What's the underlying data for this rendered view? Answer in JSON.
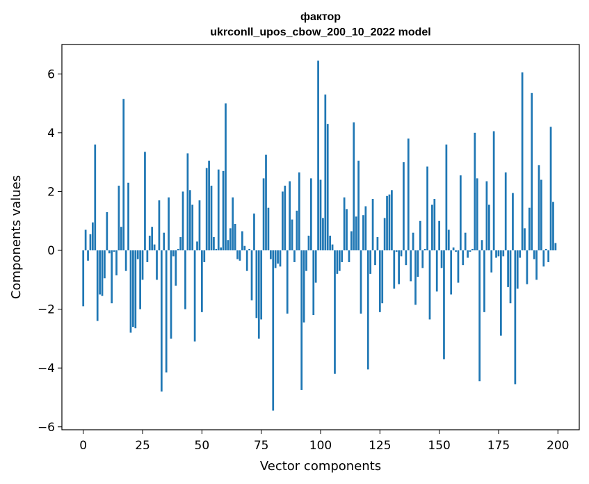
{
  "chart_data": {
    "type": "bar",
    "title": "фактор",
    "subtitle": "ukrconll_upos_cbow_200_10_2022 model",
    "xlabel": "Vector components",
    "ylabel": "Components values",
    "xlim": [
      -9,
      209
    ],
    "ylim": [
      -6.1,
      7.0
    ],
    "xticks": [
      0,
      25,
      50,
      75,
      100,
      125,
      150,
      175,
      200
    ],
    "yticks": [
      -6,
      -4,
      -2,
      0,
      2,
      4,
      6
    ],
    "xtick_labels": [
      "0",
      "25",
      "50",
      "75",
      "100",
      "125",
      "150",
      "175",
      "200"
    ],
    "ytick_labels": [
      "−6",
      "−4",
      "−2",
      "0",
      "2",
      "4",
      "6"
    ],
    "grid": false,
    "bar_color": "#1f77b4",
    "x": [
      0,
      1,
      2,
      3,
      4,
      5,
      6,
      7,
      8,
      9,
      10,
      11,
      12,
      13,
      14,
      15,
      16,
      17,
      18,
      19,
      20,
      21,
      22,
      23,
      24,
      25,
      26,
      27,
      28,
      29,
      30,
      31,
      32,
      33,
      34,
      35,
      36,
      37,
      38,
      39,
      40,
      41,
      42,
      43,
      44,
      45,
      46,
      47,
      48,
      49,
      50,
      51,
      52,
      53,
      54,
      55,
      56,
      57,
      58,
      59,
      60,
      61,
      62,
      63,
      64,
      65,
      66,
      67,
      68,
      69,
      70,
      71,
      72,
      73,
      74,
      75,
      76,
      77,
      78,
      79,
      80,
      81,
      82,
      83,
      84,
      85,
      86,
      87,
      88,
      89,
      90,
      91,
      92,
      93,
      94,
      95,
      96,
      97,
      98,
      99,
      100,
      101,
      102,
      103,
      104,
      105,
      106,
      107,
      108,
      109,
      110,
      111,
      112,
      113,
      114,
      115,
      116,
      117,
      118,
      119,
      120,
      121,
      122,
      123,
      124,
      125,
      126,
      127,
      128,
      129,
      130,
      131,
      132,
      133,
      134,
      135,
      136,
      137,
      138,
      139,
      140,
      141,
      142,
      143,
      144,
      145,
      146,
      147,
      148,
      149,
      150,
      151,
      152,
      153,
      154,
      155,
      156,
      157,
      158,
      159,
      160,
      161,
      162,
      163,
      164,
      165,
      166,
      167,
      168,
      169,
      170,
      171,
      172,
      173,
      174,
      175,
      176,
      177,
      178,
      179,
      180,
      181,
      182,
      183,
      184,
      185,
      186,
      187,
      188,
      189,
      190,
      191,
      192,
      193,
      194,
      195,
      196,
      197,
      198,
      199
    ],
    "values": [
      -1.9,
      0.7,
      -0.35,
      0.55,
      0.95,
      3.6,
      -2.4,
      -1.5,
      -1.55,
      -0.95,
      1.3,
      -0.1,
      -1.8,
      -0.05,
      -0.85,
      2.2,
      0.8,
      5.15,
      -0.7,
      2.3,
      -2.8,
      -2.6,
      -2.65,
      -0.3,
      -2.0,
      -1.0,
      3.35,
      -0.4,
      0.5,
      0.8,
      0.2,
      -1.0,
      1.7,
      -4.8,
      0.6,
      -4.15,
      1.8,
      -3.0,
      -0.2,
      -1.2,
      0.05,
      0.45,
      2.0,
      -2.0,
      3.3,
      2.05,
      1.55,
      -3.1,
      0.3,
      1.7,
      -2.1,
      -0.4,
      2.8,
      3.05,
      2.2,
      0.45,
      0.05,
      2.75,
      0.1,
      2.7,
      5.0,
      0.35,
      0.75,
      1.8,
      0.9,
      -0.3,
      -0.35,
      0.65,
      0.15,
      -0.7,
      0.05,
      -1.7,
      1.25,
      -2.3,
      -3.0,
      -2.35,
      2.45,
      3.25,
      1.45,
      -0.3,
      -5.45,
      -0.6,
      -0.45,
      -0.55,
      2.0,
      2.2,
      -2.15,
      2.35,
      1.05,
      -0.4,
      1.35,
      2.65,
      -4.75,
      -2.45,
      -0.7,
      0.5,
      2.45,
      -2.2,
      -1.1,
      6.45,
      2.4,
      1.1,
      5.3,
      4.3,
      0.5,
      0.2,
      -4.2,
      -0.8,
      -0.7,
      -0.4,
      1.8,
      1.4,
      -0.4,
      0.65,
      4.35,
      1.15,
      3.05,
      -2.15,
      1.2,
      1.5,
      -4.05,
      -0.8,
      1.75,
      -0.5,
      0.45,
      -2.1,
      -1.8,
      1.1,
      1.85,
      1.9,
      2.05,
      -1.3,
      -0.05,
      -1.15,
      -0.2,
      3.0,
      -0.5,
      3.8,
      -1.05,
      0.6,
      -1.85,
      -0.9,
      1.0,
      -0.6,
      0.05,
      2.85,
      -2.35,
      1.55,
      1.75,
      -1.4,
      1.0,
      -0.6,
      -3.7,
      3.6,
      0.7,
      -1.5,
      0.1,
      -0.05,
      -1.1,
      2.55,
      -0.5,
      0.6,
      -0.25,
      -0.05,
      0.05,
      4.0,
      2.45,
      -4.45,
      0.35,
      -2.1,
      2.35,
      1.55,
      -0.75,
      4.05,
      -0.25,
      -0.2,
      -2.9,
      -0.2,
      2.65,
      -1.25,
      -1.8,
      1.95,
      -4.55,
      -1.3,
      -0.25,
      6.05,
      0.75,
      -1.15,
      1.45,
      5.35,
      -0.3,
      -1.0,
      2.9,
      2.4,
      -0.55,
      0.05,
      -0.4,
      4.2,
      1.65,
      0.25
    ]
  }
}
